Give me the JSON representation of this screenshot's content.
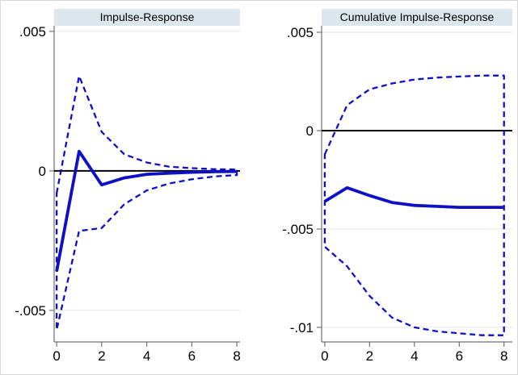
{
  "figure": {
    "background": "#ffffff",
    "border_color": "#d8d8d8"
  },
  "styles": {
    "line_color": "#0f0fc8",
    "band_color": "#dce7ed",
    "grid_color": "#e5e8ea",
    "axis_color": "#707070",
    "zero_line_color": "#000000",
    "text_color": "#000000"
  },
  "chart_data": [
    {
      "type": "line",
      "title": "Impulse-Response",
      "x": [
        0,
        1,
        2,
        3,
        4,
        5,
        6,
        7,
        8
      ],
      "series": [
        {
          "name": "impulse-response",
          "line": "solid",
          "values": [
            -0.0036,
            0.0007,
            -0.0005,
            -0.00025,
            -0.00012,
            -8e-05,
            -5e-05,
            -3e-05,
            -2e-05
          ]
        },
        {
          "name": "upper-confidence-bound",
          "line": "dashed",
          "values": [
            -0.0008,
            0.0034,
            0.0014,
            0.0006,
            0.0003,
            0.00015,
            0.0001,
            6e-05,
            5e-05
          ]
        },
        {
          "name": "lower-confidence-bound",
          "line": "dashed",
          "values": [
            -0.0057,
            -0.00215,
            -0.00205,
            -0.0012,
            -0.0007,
            -0.00045,
            -0.0003,
            -0.0002,
            -0.00015
          ]
        }
      ],
      "ci_drawn_as_closed_dashed_outline": true,
      "zero_line": true,
      "grid": "horizontal",
      "legend": "none",
      "xticks": {
        "values": [
          0,
          2,
          4,
          6,
          8
        ],
        "labels": [
          "0",
          "2",
          "4",
          "6",
          "8"
        ]
      },
      "yticks": {
        "values": [
          0.005,
          0,
          -0.005
        ],
        "labels": [
          ".005",
          "0",
          "-.005"
        ]
      },
      "xlim": [
        -0.11,
        8.14
      ],
      "ylim": [
        -0.00613,
        0.0052
      ]
    },
    {
      "type": "line",
      "title": "Cumulative Impulse-Response",
      "x": [
        0,
        1,
        2,
        3,
        4,
        5,
        6,
        7,
        8
      ],
      "series": [
        {
          "name": "cumulative-impulse-response",
          "line": "solid",
          "values": [
            -0.0036,
            -0.0029,
            -0.0033,
            -0.00365,
            -0.0038,
            -0.00385,
            -0.0039,
            -0.0039,
            -0.0039
          ]
        },
        {
          "name": "upper-confidence-bound",
          "line": "dashed",
          "values": [
            -0.0012,
            0.0013,
            0.0021,
            0.0024,
            0.0026,
            0.0027,
            0.00275,
            0.0028,
            0.0028
          ]
        },
        {
          "name": "lower-confidence-bound",
          "line": "dashed",
          "values": [
            -0.0059,
            -0.0069,
            -0.0084,
            -0.0095,
            -0.01,
            -0.0102,
            -0.0103,
            -0.0104,
            -0.0104
          ]
        }
      ],
      "ci_drawn_as_closed_dashed_outline": true,
      "zero_line": true,
      "grid": "horizontal",
      "legend": "none",
      "xticks": {
        "values": [
          0,
          2,
          4,
          6,
          8
        ],
        "labels": [
          "0",
          "2",
          "4",
          "6",
          "8"
        ]
      },
      "yticks": {
        "values": [
          0.005,
          0,
          -0.005,
          -0.01
        ],
        "labels": [
          ".005",
          "0",
          "-.005",
          "-.01"
        ]
      },
      "xlim": [
        -0.14,
        8.37
      ],
      "ylim": [
        -0.01074,
        0.00533
      ]
    }
  ]
}
